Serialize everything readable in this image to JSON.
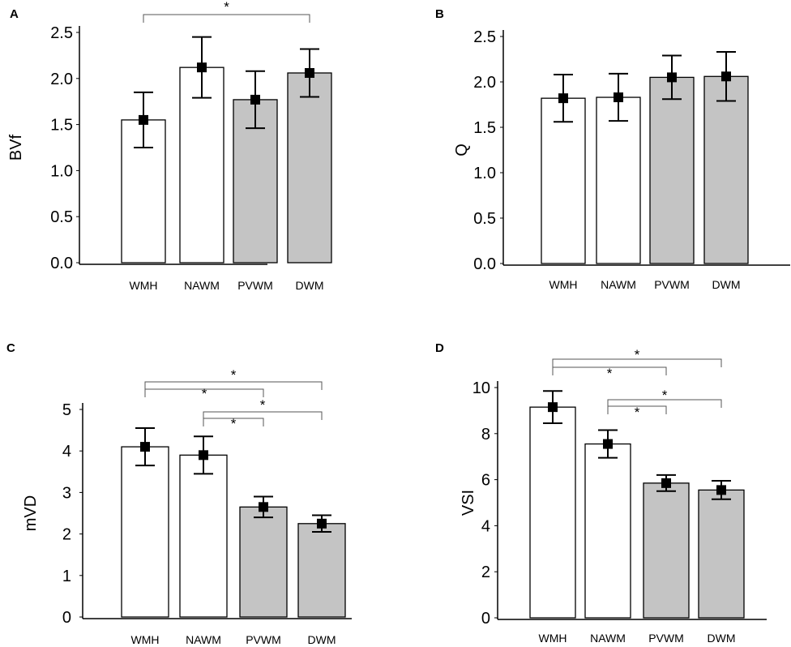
{
  "chart_data": [
    {
      "panel": "A",
      "type": "bar",
      "categories": [
        "WMH",
        "NAWM",
        "PVWM",
        "DWM"
      ],
      "values": [
        1.55,
        2.12,
        1.77,
        2.06
      ],
      "errors": [
        0.3,
        0.33,
        0.31,
        0.26
      ],
      "fills": [
        "#ffffff",
        "#ffffff",
        "#c4c4c4",
        "#c4c4c4"
      ],
      "ylabel": "BVf",
      "xlabel": "",
      "ylim": [
        0,
        2.5
      ],
      "yticks": [
        0.0,
        0.5,
        1.0,
        1.5,
        2.0,
        2.5
      ],
      "ytick_labels": [
        "0.0",
        "0.5",
        "1.0",
        "1.5",
        "2.0",
        "2.5"
      ],
      "significance": [
        {
          "from": "WMH",
          "to": "DWM",
          "label": "*"
        }
      ]
    },
    {
      "panel": "B",
      "type": "bar",
      "categories": [
        "WMH",
        "NAWM",
        "PVWM",
        "DWM"
      ],
      "values": [
        1.82,
        1.83,
        2.05,
        2.06
      ],
      "errors": [
        0.26,
        0.26,
        0.24,
        0.27
      ],
      "fills": [
        "#ffffff",
        "#ffffff",
        "#c4c4c4",
        "#c4c4c4"
      ],
      "ylabel": "Q",
      "xlabel": "",
      "ylim": [
        0,
        2.5
      ],
      "yticks": [
        0.0,
        0.5,
        1.0,
        1.5,
        2.0,
        2.5
      ],
      "ytick_labels": [
        "0.0",
        "0.5",
        "1.0",
        "1.5",
        "2.0",
        "2.5"
      ],
      "significance": []
    },
    {
      "panel": "C",
      "type": "bar",
      "categories": [
        "WMH",
        "NAWM",
        "PVWM",
        "DWM"
      ],
      "values": [
        4.1,
        3.9,
        2.65,
        2.25
      ],
      "errors": [
        0.45,
        0.45,
        0.25,
        0.2
      ],
      "fills": [
        "#ffffff",
        "#ffffff",
        "#c4c4c4",
        "#c4c4c4"
      ],
      "ylabel": "mVD",
      "xlabel": "",
      "ylim": [
        0,
        5
      ],
      "yticks": [
        0,
        1,
        2,
        3,
        4,
        5
      ],
      "ytick_labels": [
        "0",
        "1",
        "2",
        "3",
        "4",
        "5"
      ],
      "significance": [
        {
          "from": "WMH",
          "to": "DWM",
          "label": "*"
        },
        {
          "from": "WMH",
          "to": "PVWM",
          "label": "*"
        },
        {
          "from": "NAWM",
          "to": "DWM",
          "label": "*"
        },
        {
          "from": "NAWM",
          "to": "PVWM",
          "label": "*"
        }
      ]
    },
    {
      "panel": "D",
      "type": "bar",
      "categories": [
        "WMH",
        "NAWM",
        "PVWM",
        "DWM"
      ],
      "values": [
        9.15,
        7.55,
        5.85,
        5.55
      ],
      "errors": [
        0.7,
        0.6,
        0.35,
        0.4
      ],
      "fills": [
        "#ffffff",
        "#ffffff",
        "#c4c4c4",
        "#c4c4c4"
      ],
      "ylabel": "VSI",
      "xlabel": "",
      "ylim": [
        0,
        10
      ],
      "yticks": [
        0,
        2,
        4,
        6,
        8,
        10
      ],
      "ytick_labels": [
        "0",
        "2",
        "4",
        "6",
        "8",
        "10"
      ],
      "significance": [
        {
          "from": "WMH",
          "to": "DWM",
          "label": "*"
        },
        {
          "from": "WMH",
          "to": "PVWM",
          "label": "*"
        },
        {
          "from": "NAWM",
          "to": "DWM",
          "label": "*"
        },
        {
          "from": "NAWM",
          "to": "PVWM",
          "label": "*"
        }
      ]
    }
  ]
}
